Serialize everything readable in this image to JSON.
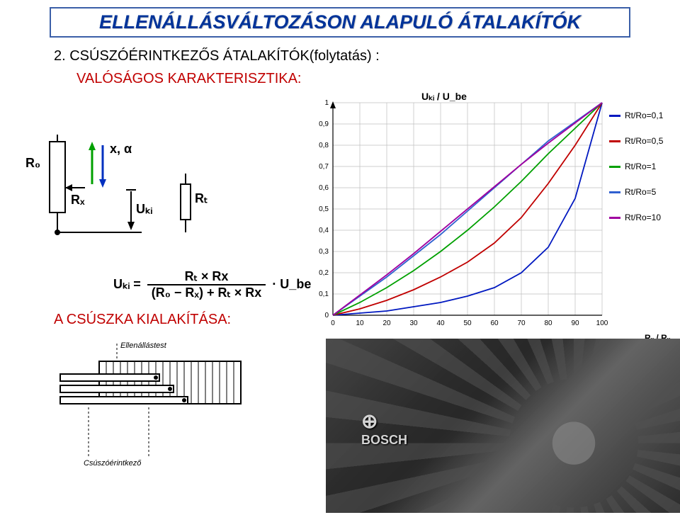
{
  "title": "ELLENÁLLÁSVÁLTOZÁSON ALAPULÓ ÁTALAKÍTÓK",
  "subtitle1": "2. CSÚSZÓÉRINTKEZŐS ÁTALAKÍTÓK(folytatás) :",
  "subtitle2": "VALÓSÁGOS KARAKTERISZTIKA:",
  "section3": "A CSÚSZKA KIALAKÍTÁSA:",
  "circuit": {
    "R0": "R₀",
    "Rx": "Rₓ",
    "Rt": "Rₜ",
    "Uki": "Uₖᵢ",
    "xa": "x, α",
    "arrow_up_color": "#00a000",
    "arrow_down_color": "#0030c0"
  },
  "formula": {
    "lhs": "Uₖᵢ =",
    "num": "Rₜ × Rx",
    "den": "(R₀ − Rₓ) + Rₜ × Rx",
    "rhs": "· U_be"
  },
  "chart": {
    "type": "line",
    "xlabel": "Rₓ / Rₓ [%]",
    "ylabel": "Uₖᵢ / U_be",
    "xlim": [
      0,
      100
    ],
    "ylim": [
      0,
      1
    ],
    "xtick_step": 10,
    "ytick_step": 0.1,
    "background_color": "#ffffff",
    "grid_color": "#bfbfbf",
    "axis_color": "#000000",
    "label_fontsize": 12,
    "series": [
      {
        "name": "Rt/Ro=0,1",
        "color": "#0018c0",
        "x": [
          0,
          10,
          20,
          30,
          40,
          50,
          60,
          70,
          80,
          90,
          100
        ],
        "y": [
          0,
          0.01,
          0.02,
          0.04,
          0.06,
          0.09,
          0.13,
          0.2,
          0.32,
          0.55,
          1.0
        ]
      },
      {
        "name": "Rt/Ro=0,5",
        "color": "#c00000",
        "x": [
          0,
          10,
          20,
          30,
          40,
          50,
          60,
          70,
          80,
          90,
          100
        ],
        "y": [
          0,
          0.03,
          0.07,
          0.12,
          0.18,
          0.25,
          0.34,
          0.46,
          0.62,
          0.8,
          1.0
        ]
      },
      {
        "name": "Rt/Ro=1",
        "color": "#00a000",
        "x": [
          0,
          10,
          20,
          30,
          40,
          50,
          60,
          70,
          80,
          90,
          100
        ],
        "y": [
          0,
          0.06,
          0.13,
          0.21,
          0.3,
          0.4,
          0.51,
          0.63,
          0.76,
          0.88,
          1.0
        ]
      },
      {
        "name": "Rt/Ro=5",
        "color": "#3060d0",
        "x": [
          0,
          10,
          20,
          30,
          40,
          50,
          60,
          70,
          80,
          90,
          100
        ],
        "y": [
          0,
          0.09,
          0.18,
          0.28,
          0.38,
          0.49,
          0.6,
          0.71,
          0.82,
          0.91,
          1.0
        ]
      },
      {
        "name": "Rt/Ro=10",
        "color": "#a000a0",
        "x": [
          0,
          10,
          20,
          30,
          40,
          50,
          60,
          70,
          80,
          90,
          100
        ],
        "y": [
          0,
          0.095,
          0.19,
          0.29,
          0.395,
          0.5,
          0.605,
          0.71,
          0.81,
          0.905,
          1.0
        ]
      }
    ],
    "line_width": 1.8
  },
  "slider_drawing": {
    "label_body": "Ellenállástest",
    "label_contact": "Csúszóérintkező"
  },
  "photo_caption": "BOSCH"
}
